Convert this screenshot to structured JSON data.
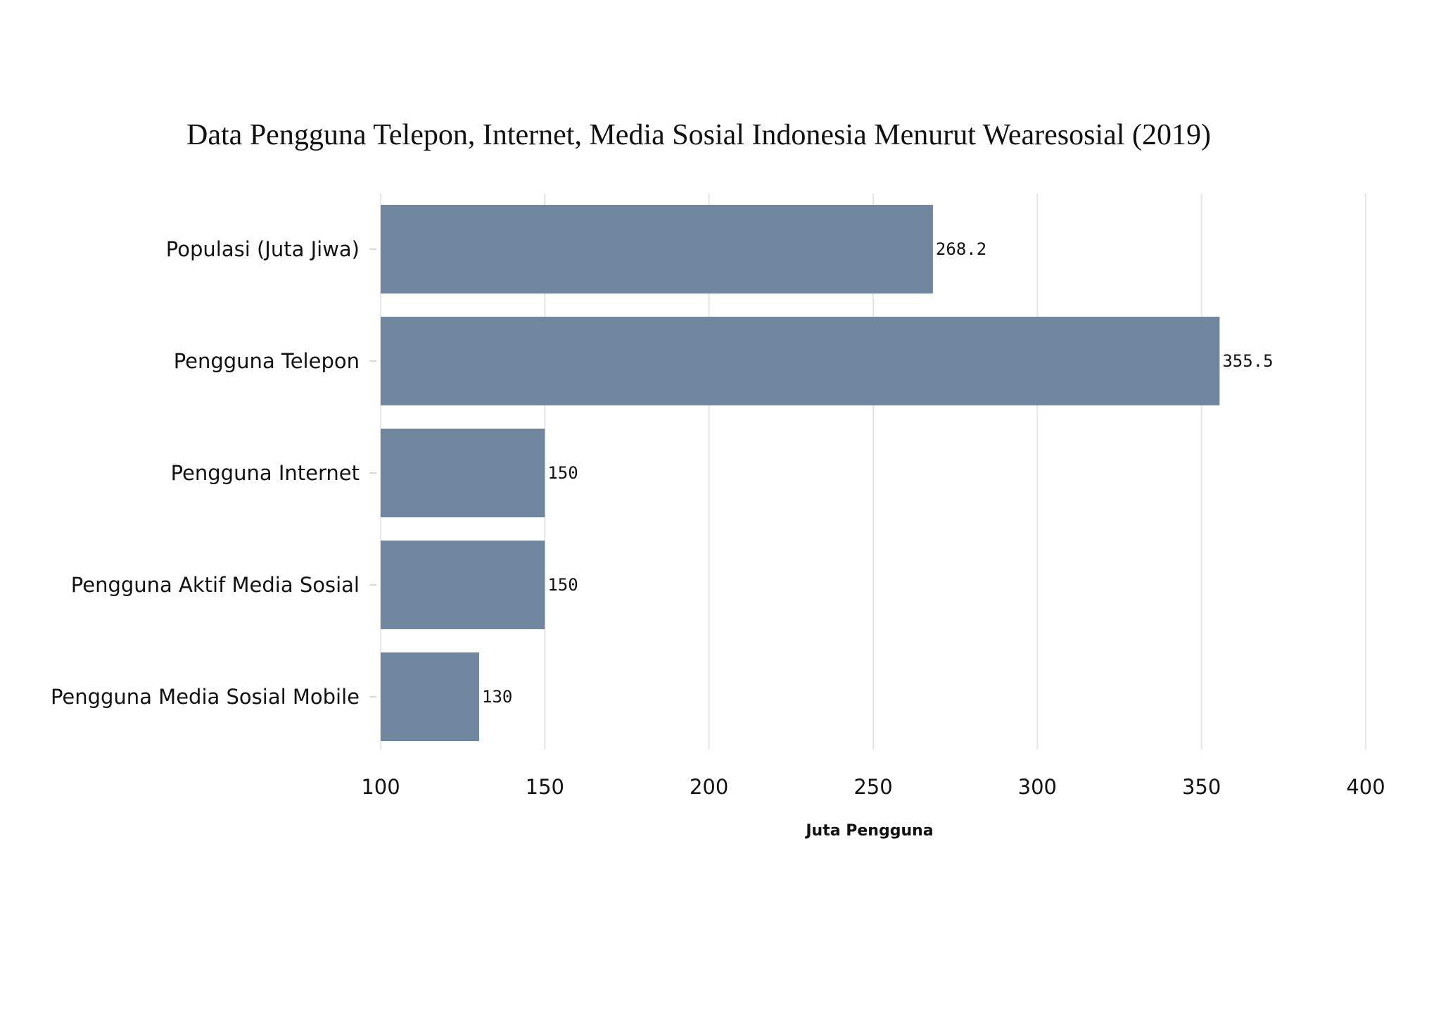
{
  "chart_data": {
    "type": "bar",
    "orientation": "horizontal",
    "title": "Data Pengguna Telepon, Internet, Media Sosial Indonesia Menurut Wearesosial (2019)",
    "xlabel": "Juta Pengguna",
    "ylabel": "",
    "categories": [
      "Populasi (Juta Jiwa)",
      "Pengguna Telepon",
      "Pengguna Internet",
      "Pengguna Aktif Media Sosial",
      "Pengguna Media Sosial Mobile"
    ],
    "values": [
      268.2,
      355.5,
      150,
      150,
      130
    ],
    "value_labels": [
      "268.2",
      "355.5",
      "150",
      "150",
      "130"
    ],
    "xlim": [
      100,
      400
    ],
    "xticks": [
      100,
      150,
      200,
      250,
      300,
      350,
      400
    ],
    "xtick_labels": [
      "100",
      "150",
      "200",
      "250",
      "300",
      "350",
      "400"
    ],
    "grid": true,
    "legend": "none",
    "colors": {
      "bar": "#71869f",
      "grid": "#e6e6e6",
      "text": "#111111"
    }
  }
}
